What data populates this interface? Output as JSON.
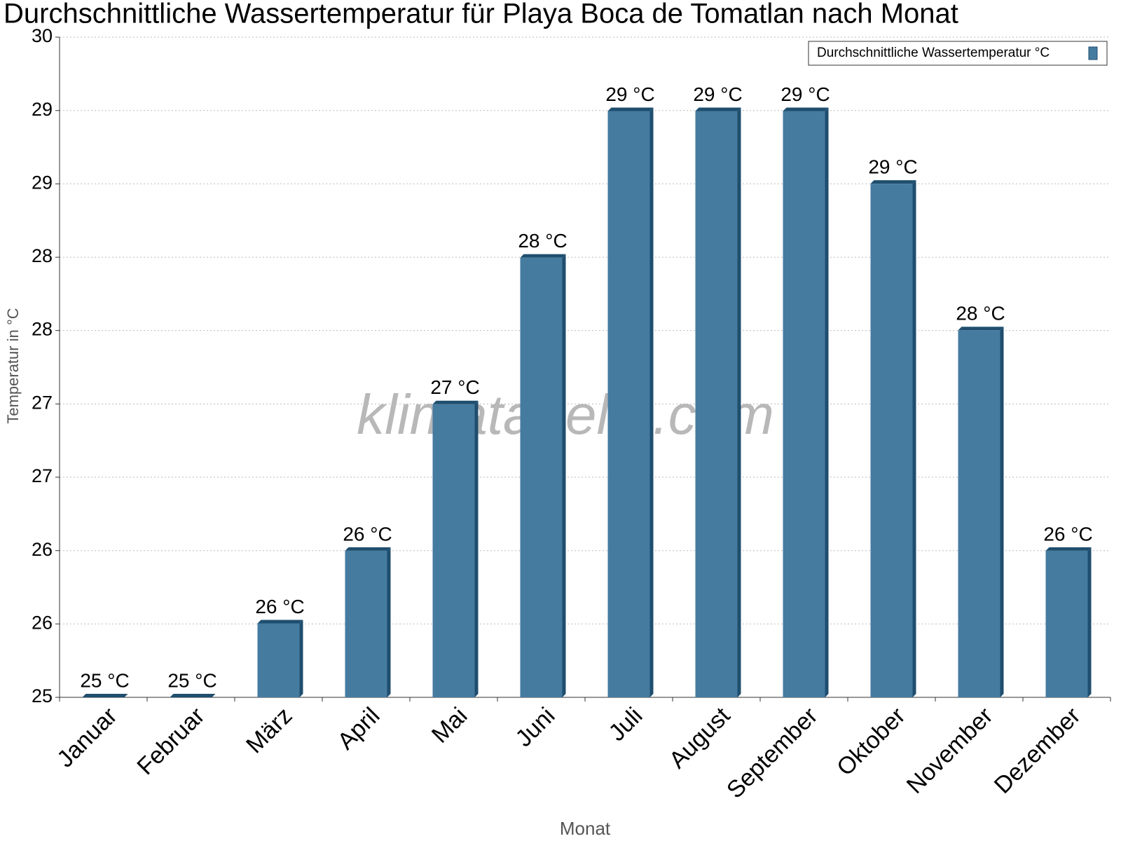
{
  "chart_data": {
    "type": "bar",
    "title": "Durchschnittliche Wassertemperatur für Playa Boca de Tomatlan nach Monat",
    "x_label": "Monat",
    "y_label": "Temperatur in °C",
    "watermark": "klimatabelle.com",
    "categories": [
      "Januar",
      "Februar",
      "März",
      "April",
      "Mai",
      "Juni",
      "Juli",
      "August",
      "September",
      "Oktober",
      "November",
      "Dezember"
    ],
    "series": [
      {
        "name": "Durchschnittliche Wassertemperatur °C",
        "color": "#467ba0",
        "values": [
          25,
          25,
          25.56,
          26.11,
          27.22,
          28.33,
          29.44,
          29.44,
          29.44,
          28.89,
          27.78,
          26.11
        ],
        "value_labels": [
          "25 °C",
          "25 °C",
          "26 °C",
          "26 °C",
          "27 °C",
          "28 °C",
          "29 °C",
          "29 °C",
          "29 °C",
          "29 °C",
          "28 °C",
          "26 °C"
        ]
      }
    ],
    "ylim": [
      25,
      30
    ],
    "yticks": [
      {
        "value": 25,
        "label": "25"
      },
      {
        "value": 25.556,
        "label": "26"
      },
      {
        "value": 26.111,
        "label": "26"
      },
      {
        "value": 26.667,
        "label": "27"
      },
      {
        "value": 27.222,
        "label": "27"
      },
      {
        "value": 27.778,
        "label": "28"
      },
      {
        "value": 28.333,
        "label": "28"
      },
      {
        "value": 28.889,
        "label": "29"
      },
      {
        "value": 29.444,
        "label": "29"
      },
      {
        "value": 30,
        "label": "30"
      }
    ],
    "grid": true,
    "legend": "top-right"
  }
}
